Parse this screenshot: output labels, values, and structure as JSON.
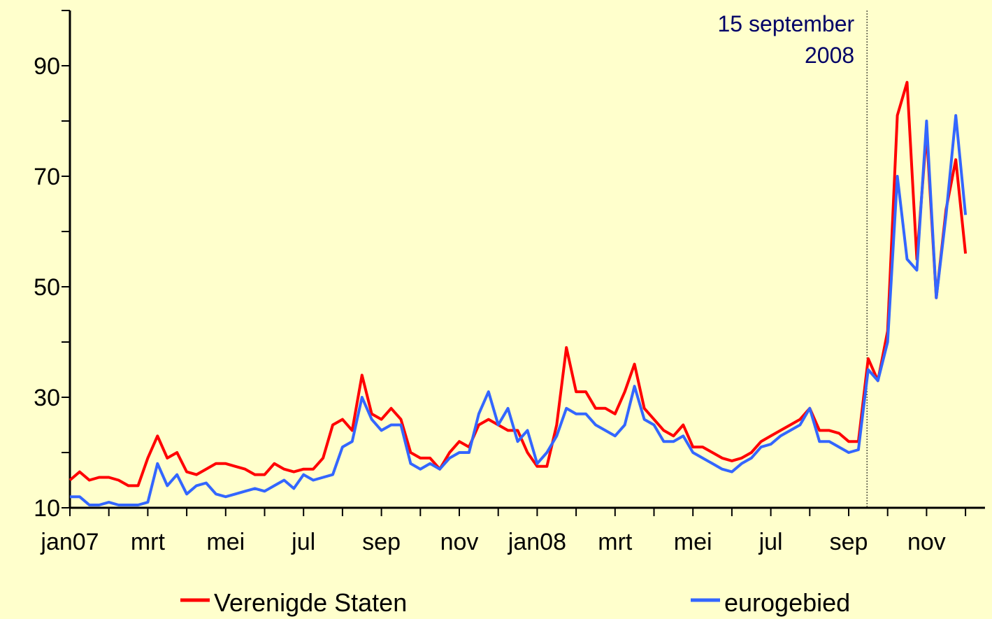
{
  "chart_data": {
    "type": "line",
    "x": [
      0,
      0.25,
      0.5,
      0.75,
      1,
      1.25,
      1.5,
      1.75,
      2,
      2.25,
      2.5,
      2.75,
      3,
      3.25,
      3.5,
      3.75,
      4,
      4.25,
      4.5,
      4.75,
      5,
      5.25,
      5.5,
      5.75,
      6,
      6.25,
      6.5,
      6.75,
      7,
      7.25,
      7.5,
      7.75,
      8,
      8.25,
      8.5,
      8.75,
      9,
      9.25,
      9.5,
      9.75,
      10,
      10.25,
      10.5,
      10.75,
      11,
      11.25,
      11.5,
      11.75,
      12,
      12.25,
      12.5,
      12.75,
      13,
      13.25,
      13.5,
      13.75,
      14,
      14.25,
      14.5,
      14.75,
      15,
      15.25,
      15.5,
      15.75,
      16,
      16.25,
      16.5,
      16.75,
      17,
      17.25,
      17.5,
      17.75,
      18,
      18.25,
      18.5,
      18.75,
      19,
      19.25,
      19.5,
      19.75,
      20,
      20.25,
      20.5,
      20.75,
      21,
      21.25,
      21.5,
      21.75,
      22,
      22.25,
      22.5,
      22.75,
      23
    ],
    "series": [
      {
        "name": "Verenigde Staten",
        "color": "#ff0000",
        "values": [
          15,
          16.5,
          15,
          15.5,
          15.5,
          15,
          14,
          14,
          19,
          23,
          19,
          20,
          16.5,
          16,
          17,
          18,
          18,
          17.5,
          17,
          16,
          16,
          18,
          17,
          16.5,
          17,
          17,
          19,
          25,
          26,
          24,
          34,
          27,
          26,
          28,
          26,
          20,
          19,
          19,
          17,
          20,
          22,
          21,
          25,
          26,
          25,
          24,
          24,
          20,
          17.5,
          17.5,
          25,
          39,
          31,
          31,
          28,
          28,
          27,
          31,
          36,
          28,
          26,
          24,
          23,
          25,
          21,
          21,
          20,
          19,
          18.5,
          19,
          20,
          22,
          23,
          24,
          25,
          26,
          28,
          24,
          24,
          23.5,
          22,
          22,
          37,
          33,
          42,
          81,
          87,
          55,
          78,
          48,
          64,
          73,
          56
        ]
      },
      {
        "name": "eurogebied",
        "color": "#3366ff",
        "values": [
          12,
          12,
          10.5,
          10.5,
          11,
          10.5,
          10.5,
          10.5,
          11,
          18,
          14,
          16,
          12.5,
          14,
          14.5,
          12.5,
          12,
          12.5,
          13,
          13.5,
          13,
          14,
          15,
          13.5,
          16,
          15,
          15.5,
          16,
          21,
          22,
          30,
          26,
          24,
          25,
          25,
          18,
          17,
          18,
          17,
          19,
          20,
          20,
          27,
          31,
          25,
          28,
          22,
          24,
          18,
          20,
          23,
          28,
          27,
          27,
          25,
          24,
          23,
          25,
          32,
          26,
          25,
          22,
          22,
          23,
          20,
          19,
          18,
          17,
          16.5,
          18,
          19,
          21,
          21.5,
          23,
          24,
          25,
          28,
          22,
          22,
          21,
          20,
          20.5,
          35,
          33,
          40,
          70,
          55,
          53,
          80,
          48,
          63,
          81,
          63
        ]
      }
    ],
    "xlim": [
      0,
      23.5
    ],
    "xticks": [
      {
        "value": 0,
        "label": "jan07"
      },
      {
        "value": 2,
        "label": "mrt"
      },
      {
        "value": 4,
        "label": "mei"
      },
      {
        "value": 6,
        "label": "jul"
      },
      {
        "value": 8,
        "label": "sep"
      },
      {
        "value": 10,
        "label": "nov"
      },
      {
        "value": 12,
        "label": "jan08"
      },
      {
        "value": 14,
        "label": "mrt"
      },
      {
        "value": 16,
        "label": "mei"
      },
      {
        "value": 18,
        "label": "jul"
      },
      {
        "value": 20,
        "label": "sep"
      },
      {
        "value": 22,
        "label": "nov"
      }
    ],
    "xminorticks": [
      1,
      3,
      5,
      7,
      9,
      11,
      13,
      15,
      17,
      19,
      21,
      23
    ],
    "ylim": [
      10,
      100
    ],
    "yticks": [
      10,
      30,
      50,
      70,
      90
    ],
    "yminorticks": [
      20,
      40,
      60,
      80,
      100
    ],
    "annotation": {
      "lines": [
        "15 september",
        "2008"
      ],
      "x": 20.47
    },
    "legend": "bottom"
  }
}
